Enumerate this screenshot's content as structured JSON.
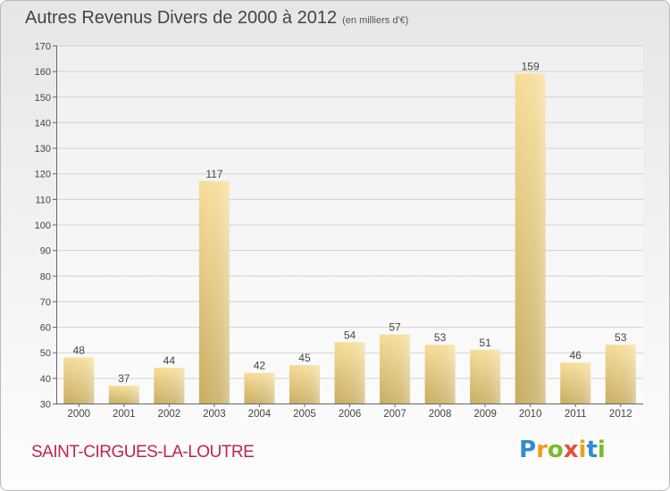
{
  "header": {
    "title": "Autres Revenus Divers de 2000 à 2012",
    "unit": "(en milliers d'€)"
  },
  "footer": {
    "town": "SAINT-CIRGUES-LA-LOUTRE",
    "logo_letters": [
      "P",
      "r",
      "o",
      "x",
      "i",
      "t",
      "i"
    ],
    "logo_colors": [
      "#2e8ecf",
      "#e8a31c",
      "#7cba2a",
      "#e84e3c",
      "#e8a31c",
      "#2e8ecf",
      "#7cba2a"
    ]
  },
  "chart_data": {
    "type": "bar",
    "categories": [
      "2000",
      "2001",
      "2002",
      "2003",
      "2004",
      "2005",
      "2006",
      "2007",
      "2008",
      "2009",
      "2010",
      "2011",
      "2012"
    ],
    "values": [
      48,
      37,
      44,
      117,
      42,
      45,
      54,
      57,
      53,
      51,
      159,
      46,
      53
    ],
    "ylim": [
      30,
      170
    ],
    "yticks": [
      30,
      40,
      50,
      60,
      70,
      80,
      90,
      100,
      110,
      120,
      130,
      140,
      150,
      160,
      170
    ],
    "grid": true,
    "colors": {
      "bar_light": "#f6dc96",
      "bar_dark": "#c8ad62",
      "grid": "#d2d2d2",
      "axis": "#666666"
    }
  }
}
